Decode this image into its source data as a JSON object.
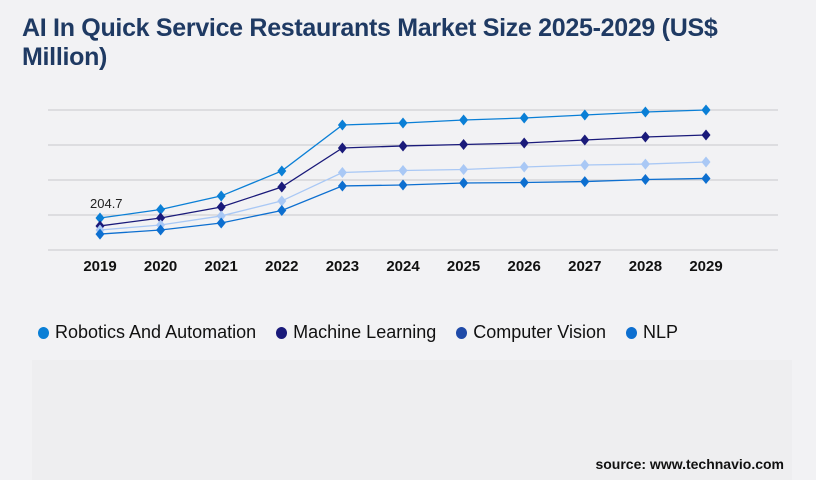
{
  "title": "AI In Quick Service Restaurants Market Size 2025-2029 (US$ Million)",
  "source": "source: www.technavio.com",
  "chart_data": {
    "type": "line",
    "title": "AI In Quick Service Restaurants Market Size 2025-2029 (US$ Million)",
    "categories": [
      "2019",
      "2020",
      "2021",
      "2022",
      "2023",
      "2024",
      "2025",
      "2026",
      "2027",
      "2028",
      "2029"
    ],
    "ylim": [
      0,
      896
    ],
    "grid": true,
    "legend": "bottom",
    "annotations": [
      {
        "category": "2019",
        "series": "Robotics And Automation",
        "text": "204.7"
      }
    ],
    "series": [
      {
        "name": "Robotics And Automation",
        "color": "#0a7fd6",
        "legend_color": "#0a7fd6",
        "values": [
          204.7,
          259,
          346,
          506,
          800,
          813,
          832,
          845,
          864,
          883,
          896
        ]
      },
      {
        "name": "Machine Learning",
        "color": "#1a1a7a",
        "legend_color": "#1a1a7a",
        "values": [
          154,
          205,
          275,
          403,
          653,
          666,
          675,
          685,
          704,
          723,
          736
        ]
      },
      {
        "name": "Computer Vision",
        "color": "#a9c8f5",
        "legend_color": "#1f4aa8",
        "values": [
          128,
          160,
          218,
          314,
          496,
          509,
          515,
          531,
          544,
          550,
          563
        ]
      },
      {
        "name": "NLP",
        "color": "#0d6fd0",
        "legend_color": "#0d6fd0",
        "values": [
          102,
          128,
          173,
          253,
          410,
          416,
          429,
          432,
          438,
          451,
          458
        ]
      }
    ]
  }
}
